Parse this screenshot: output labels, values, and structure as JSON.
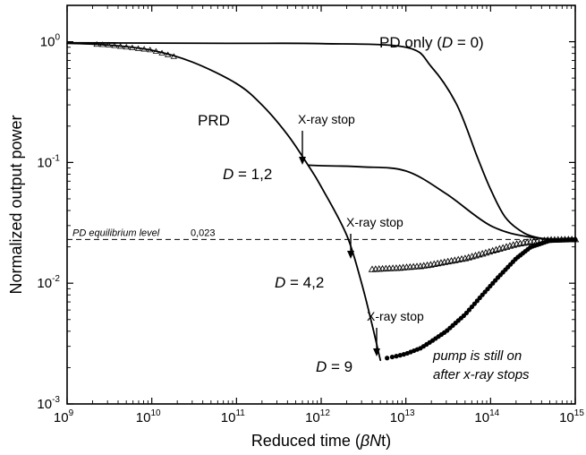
{
  "chart_data": {
    "type": "line",
    "x_scale": "log",
    "y_scale": "log",
    "xlabel_parts": [
      "Reduced time (",
      "β",
      "N",
      "t)"
    ],
    "ylabel": "Normalized output power",
    "xlim": [
      1000000000.0,
      1000000000000000.0
    ],
    "ylim": [
      0.001,
      2
    ],
    "x_ticks": [
      {
        "base": "10",
        "exp": "9",
        "value": 1000000000.0
      },
      {
        "base": "10",
        "exp": "10",
        "value": 10000000000.0
      },
      {
        "base": "10",
        "exp": "11",
        "value": 100000000000.0
      },
      {
        "base": "10",
        "exp": "12",
        "value": 1000000000000.0
      },
      {
        "base": "10",
        "exp": "13",
        "value": 10000000000000.0
      },
      {
        "base": "10",
        "exp": "14",
        "value": 100000000000000.0
      },
      {
        "base": "10",
        "exp": "15",
        "value": 1000000000000000.0
      }
    ],
    "y_ticks": [
      {
        "base": "10",
        "exp": "0",
        "value": 1
      },
      {
        "base": "10",
        "exp": "-1",
        "value": 0.1
      },
      {
        "base": "10",
        "exp": "-2",
        "value": 0.01
      },
      {
        "base": "10",
        "exp": "-3",
        "value": 0.001
      }
    ],
    "reference_line": {
      "y": 0.023,
      "label": "PD equilibrium level",
      "value_label": "0,023"
    },
    "series": [
      {
        "name": "PD only (D = 0)",
        "style": "line",
        "x": [
          1000000000.0,
          10000000000.0,
          100000000000.0,
          1000000000000.0,
          10000000000000.0,
          20000000000000.0,
          40000000000000.0,
          70000000000000.0,
          100000000000000.0,
          150000000000000.0,
          250000000000000.0,
          400000000000000.0,
          600000000000000.0,
          1000000000000000.0
        ],
        "y": [
          0.98,
          0.975,
          0.97,
          0.965,
          0.9,
          0.62,
          0.3,
          0.11,
          0.06,
          0.035,
          0.026,
          0.0235,
          0.023,
          0.023
        ]
      },
      {
        "name": "PRD",
        "style": "thick",
        "x": [
          1000000000.0,
          3000000000.0,
          10000000000.0,
          30000000000.0,
          100000000000.0,
          200000000000.0,
          400000000000.0,
          700000000000.0,
          1000000000000.0,
          2000000000000.0,
          3000000000000.0,
          4000000000000.0,
          5000000000000.0
        ],
        "y": [
          0.97,
          0.94,
          0.85,
          0.68,
          0.45,
          0.3,
          0.17,
          0.095,
          0.063,
          0.025,
          0.01,
          0.0045,
          0.0023
        ]
      },
      {
        "name": "D = 1,2 after x-ray stop",
        "style": "line",
        "x": [
          700000000000.0,
          1000000000000.0,
          3000000000000.0,
          10000000000000.0,
          30000000000000.0,
          100000000000000.0,
          300000000000000.0,
          1000000000000000.0
        ],
        "y": [
          0.095,
          0.094,
          0.092,
          0.085,
          0.055,
          0.03,
          0.024,
          0.023
        ]
      },
      {
        "name": "D = 4,2 after x-ray stop",
        "style": "triangles",
        "x": [
          4000000000000.0,
          6000000000000.0,
          8000000000000.0,
          10000000000000.0,
          15000000000000.0,
          20000000000000.0,
          30000000000000.0,
          50000000000000.0,
          80000000000000.0,
          120000000000000.0,
          200000000000000.0,
          300000000000000.0,
          500000000000000.0,
          1000000000000000.0
        ],
        "y": [
          0.013,
          0.0132,
          0.0133,
          0.0135,
          0.0138,
          0.0142,
          0.015,
          0.016,
          0.0175,
          0.019,
          0.021,
          0.022,
          0.0228,
          0.023
        ]
      },
      {
        "name": "D = 9 after x-ray stop",
        "style": "dots",
        "x": [
          6000000000000.0,
          8000000000000.0,
          10000000000000.0,
          15000000000000.0,
          20000000000000.0,
          30000000000000.0,
          50000000000000.0,
          80000000000000.0,
          120000000000000.0,
          200000000000000.0,
          300000000000000.0,
          500000000000000.0,
          1000000000000000.0
        ],
        "y": [
          0.0024,
          0.0025,
          0.0026,
          0.0029,
          0.0033,
          0.004,
          0.0055,
          0.008,
          0.011,
          0.016,
          0.02,
          0.0225,
          0.023
        ]
      }
    ],
    "annotations": {
      "pd_only": {
        "pre": "PD only (",
        "var": "D",
        "post": " = 0)"
      },
      "prd": "PRD",
      "d12": {
        "var": "D",
        "post": " = 1,2"
      },
      "d42": {
        "var": "D",
        "post": " = 4,2"
      },
      "d9": {
        "var": "D",
        "post": " = 9"
      },
      "xray_stop": "X-ray stop",
      "pump_line1": "pump is still on",
      "pump_line2": "after x-ray stops"
    }
  }
}
